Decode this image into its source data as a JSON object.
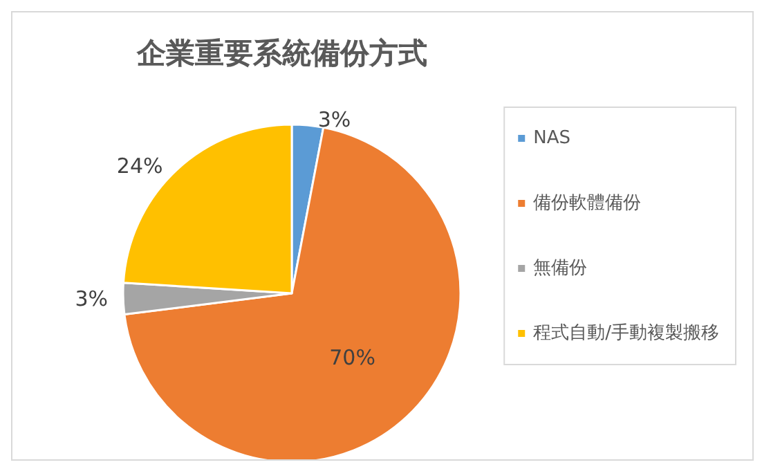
{
  "chart_data": {
    "type": "pie",
    "title": "企業重要系統備份方式",
    "categories": [
      "NAS",
      "備份軟體備份",
      "無備份",
      "程式自動/手動複製搬移"
    ],
    "values": [
      3,
      70,
      3,
      24
    ],
    "colors": [
      "#5b9bd5",
      "#ed7d31",
      "#a5a5a5",
      "#ffc000"
    ],
    "value_labels": [
      "3%",
      "70%",
      "3%",
      "24%"
    ],
    "legend": "right"
  }
}
